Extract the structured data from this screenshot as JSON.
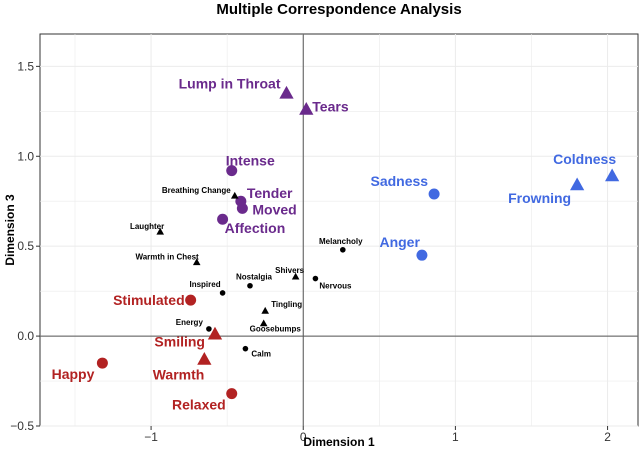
{
  "chart_data": {
    "type": "scatter",
    "title": "Multiple Correspondence Analysis",
    "xlabel": "Dimension 1",
    "ylabel": "Dimension 3",
    "xlim": [
      -1.73,
      2.2
    ],
    "ylim": [
      -0.5,
      1.68
    ],
    "xticks": [
      -1,
      0,
      1,
      2
    ],
    "xtick_labels": [
      "−1",
      "0",
      "1",
      "2"
    ],
    "yticks": [
      -0.5,
      0.0,
      0.5,
      1.0,
      1.5
    ],
    "ytick_labels": [
      "−0.5",
      "0.0",
      "0.5",
      "1.0",
      "1.5"
    ],
    "grid": true,
    "colors": {
      "black": "#000000",
      "purple": "#6a2a8c",
      "blue": "#4169e1",
      "red": "#b22222",
      "reference_line": "#555555",
      "grid": "#ebebeb"
    },
    "points": [
      {
        "label": "Lump in Throat",
        "x": -0.11,
        "y": 1.35,
        "shape": "triangle",
        "color": "purple",
        "size": "big"
      },
      {
        "label": "Tears",
        "x": 0.02,
        "y": 1.26,
        "shape": "triangle",
        "color": "purple",
        "size": "big"
      },
      {
        "label": "Intense",
        "x": -0.47,
        "y": 0.92,
        "shape": "circle",
        "color": "purple",
        "size": "big"
      },
      {
        "label": "Tender",
        "x": -0.41,
        "y": 0.75,
        "shape": "circle",
        "color": "purple",
        "size": "big"
      },
      {
        "label": "Moved",
        "x": -0.4,
        "y": 0.71,
        "shape": "circle",
        "color": "purple",
        "size": "big"
      },
      {
        "label": "Affection",
        "x": -0.53,
        "y": 0.65,
        "shape": "circle",
        "color": "purple",
        "size": "big"
      },
      {
        "label": "Coldness",
        "x": 2.03,
        "y": 0.89,
        "shape": "triangle",
        "color": "blue",
        "size": "big"
      },
      {
        "label": "Frowning",
        "x": 1.8,
        "y": 0.84,
        "shape": "triangle",
        "color": "blue",
        "size": "big"
      },
      {
        "label": "Sadness",
        "x": 0.86,
        "y": 0.79,
        "shape": "circle",
        "color": "blue",
        "size": "big"
      },
      {
        "label": "Anger",
        "x": 0.78,
        "y": 0.45,
        "shape": "circle",
        "color": "blue",
        "size": "big"
      },
      {
        "label": "Stimulated",
        "x": -0.74,
        "y": 0.2,
        "shape": "circle",
        "color": "red",
        "size": "big"
      },
      {
        "label": "Smiling",
        "x": -0.58,
        "y": 0.01,
        "shape": "triangle",
        "color": "red",
        "size": "big"
      },
      {
        "label": "Warmth",
        "x": -0.65,
        "y": -0.13,
        "shape": "triangle",
        "color": "red",
        "size": "big"
      },
      {
        "label": "Happy",
        "x": -1.32,
        "y": -0.15,
        "shape": "circle",
        "color": "red",
        "size": "big"
      },
      {
        "label": "Relaxed",
        "x": -0.47,
        "y": -0.32,
        "shape": "circle",
        "color": "red",
        "size": "big"
      },
      {
        "label": "Breathing Change",
        "x": -0.45,
        "y": 0.78,
        "shape": "triangle",
        "color": "black",
        "size": "small"
      },
      {
        "label": "Laughter",
        "x": -0.94,
        "y": 0.58,
        "shape": "triangle",
        "color": "black",
        "size": "small"
      },
      {
        "label": "Warmth in Chest",
        "x": -0.7,
        "y": 0.41,
        "shape": "triangle",
        "color": "black",
        "size": "small"
      },
      {
        "label": "Melancholy",
        "x": 0.26,
        "y": 0.48,
        "shape": "circle",
        "color": "black",
        "size": "small"
      },
      {
        "label": "Shivers",
        "x": -0.05,
        "y": 0.33,
        "shape": "triangle",
        "color": "black",
        "size": "small"
      },
      {
        "label": "Nervous",
        "x": 0.08,
        "y": 0.32,
        "shape": "circle",
        "color": "black",
        "size": "small"
      },
      {
        "label": "Nostalgia",
        "x": -0.35,
        "y": 0.28,
        "shape": "circle",
        "color": "black",
        "size": "small"
      },
      {
        "label": "Inspired",
        "x": -0.53,
        "y": 0.24,
        "shape": "circle",
        "color": "black",
        "size": "small"
      },
      {
        "label": "Tingling",
        "x": -0.25,
        "y": 0.14,
        "shape": "triangle",
        "color": "black",
        "size": "small"
      },
      {
        "label": "Energy",
        "x": -0.62,
        "y": 0.04,
        "shape": "circle",
        "color": "black",
        "size": "small"
      },
      {
        "label": "Goosebumps",
        "x": -0.26,
        "y": 0.07,
        "shape": "triangle",
        "color": "black",
        "size": "small"
      },
      {
        "label": "Calm",
        "x": -0.38,
        "y": -0.07,
        "shape": "circle",
        "color": "black",
        "size": "small"
      }
    ]
  }
}
